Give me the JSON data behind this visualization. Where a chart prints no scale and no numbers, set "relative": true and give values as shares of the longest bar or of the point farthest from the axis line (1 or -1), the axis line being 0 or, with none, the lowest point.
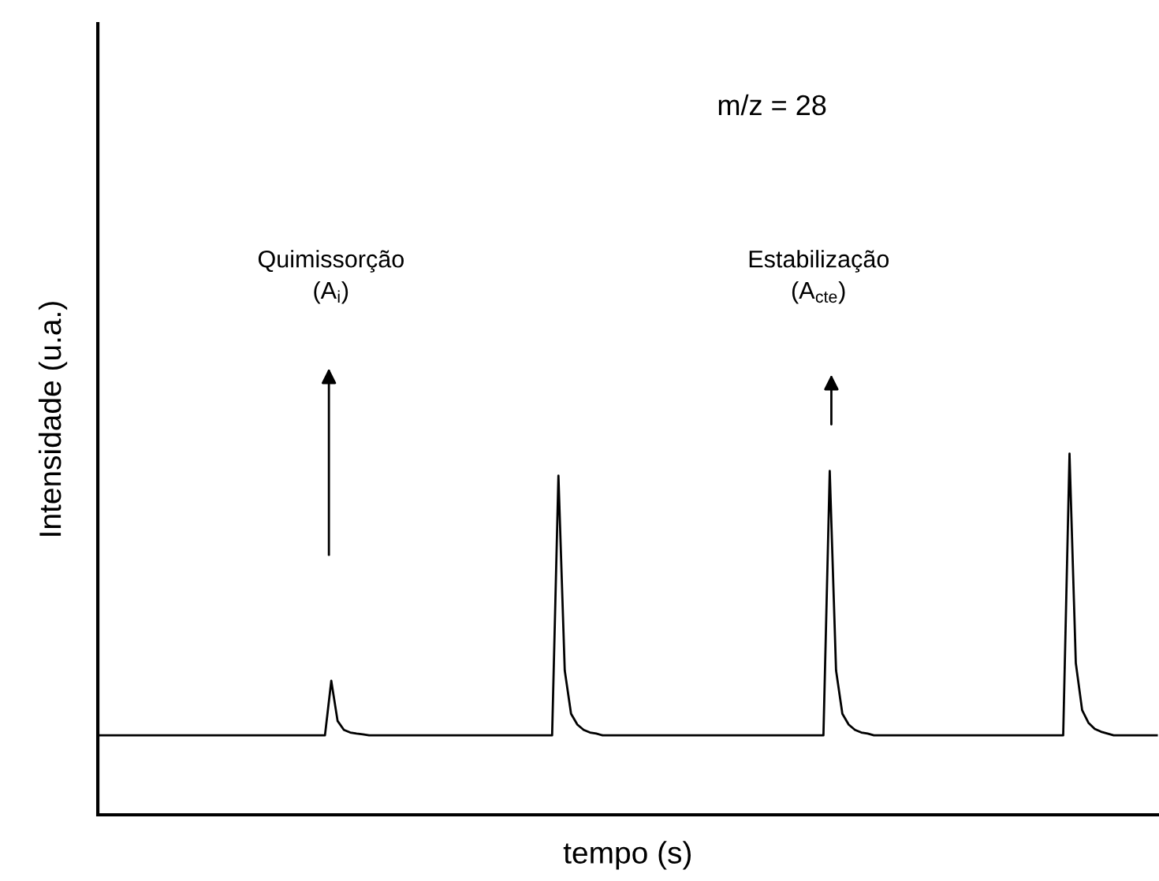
{
  "chart_data": {
    "type": "line",
    "xlabel": "tempo (s)",
    "ylabel": "Intensidade (u.a.)",
    "relative": true,
    "color": "#000000",
    "annotations": [
      "m/z = 28",
      "Quimissorção\n(A$_{i}$)",
      "Estabilização\n(A$_{cte}$)"
    ],
    "categories": [
      null,
      null,
      null,
      null,
      null,
      null,
      null,
      null,
      null,
      null,
      null,
      null,
      null,
      null,
      null,
      null,
      null,
      null,
      null,
      null,
      null,
      null,
      null,
      null,
      null,
      null,
      null,
      null,
      null,
      null,
      null,
      null,
      null,
      null,
      null,
      null,
      null,
      null,
      null,
      null,
      null,
      null,
      null,
      null,
      null,
      null,
      null,
      null,
      null,
      null,
      null,
      null,
      null,
      null,
      null,
      null,
      null,
      null,
      null,
      null,
      null,
      null,
      null,
      null,
      null,
      null,
      null,
      null,
      null,
      null,
      null,
      null,
      null,
      null,
      null,
      null,
      null,
      null,
      null,
      null,
      null,
      null,
      null,
      null,
      null,
      null,
      null,
      null,
      null,
      null,
      null,
      null,
      null,
      null,
      null,
      null,
      null,
      null,
      null,
      null,
      null,
      null,
      null,
      null,
      null,
      null,
      null,
      null,
      null,
      null,
      null,
      null,
      null,
      null,
      null,
      null,
      null,
      null,
      null,
      null,
      null,
      null,
      null,
      null,
      null,
      null,
      null,
      null,
      null,
      null,
      null,
      null,
      null,
      null,
      null,
      null,
      null,
      null,
      null,
      null,
      null,
      null,
      null,
      null,
      null,
      null,
      null,
      null,
      null,
      null,
      null,
      null,
      null,
      null,
      null,
      null,
      null,
      null,
      null,
      null,
      null,
      null,
      null,
      null,
      null,
      null,
      null,
      null,
      null
    ],
    "values": [
      0.22,
      0.22,
      0.22,
      0.22,
      0.22,
      0.22,
      0.22,
      0.22,
      0.22,
      0.22,
      0.22,
      0.22,
      0.22,
      0.22,
      0.22,
      0.22,
      0.22,
      0.22,
      0.22,
      0.22,
      0.22,
      0.22,
      0.22,
      0.22,
      0.22,
      0.22,
      0.22,
      0.22,
      0.22,
      0.22,
      0.22,
      0.22,
      0.22,
      0.22,
      0.22,
      0.22,
      0.22,
      0.371,
      0.26,
      0.235,
      0.228,
      0.225,
      0.223,
      0.22,
      0.22,
      0.22,
      0.22,
      0.22,
      0.22,
      0.22,
      0.22,
      0.22,
      0.22,
      0.22,
      0.22,
      0.22,
      0.22,
      0.22,
      0.22,
      0.22,
      0.22,
      0.22,
      0.22,
      0.22,
      0.22,
      0.22,
      0.22,
      0.22,
      0.22,
      0.22,
      0.22,
      0.22,
      0.22,
      0.939,
      0.4,
      0.28,
      0.25,
      0.235,
      0.228,
      0.225,
      0.22,
      0.22,
      0.22,
      0.22,
      0.22,
      0.22,
      0.22,
      0.22,
      0.22,
      0.22,
      0.22,
      0.22,
      0.22,
      0.22,
      0.22,
      0.22,
      0.22,
      0.22,
      0.22,
      0.22,
      0.22,
      0.22,
      0.22,
      0.22,
      0.22,
      0.22,
      0.22,
      0.22,
      0.22,
      0.22,
      0.22,
      0.22,
      0.22,
      0.22,
      0.22,
      0.22,
      0.952,
      0.4,
      0.28,
      0.25,
      0.235,
      0.228,
      0.225,
      0.22,
      0.22,
      0.22,
      0.22,
      0.22,
      0.22,
      0.22,
      0.22,
      0.22,
      0.22,
      0.22,
      0.22,
      0.22,
      0.22,
      0.22,
      0.22,
      0.22,
      0.22,
      0.22,
      0.22,
      0.22,
      0.22,
      0.22,
      0.22,
      0.22,
      0.22,
      0.22,
      0.22,
      0.22,
      0.22,
      0.22,
      1,
      0.42,
      0.29,
      0.255,
      0.238,
      0.23,
      0.225,
      0.22,
      0.22,
      0.22,
      0.22,
      0.22,
      0.22,
      0.22,
      0.22
    ]
  }
}
